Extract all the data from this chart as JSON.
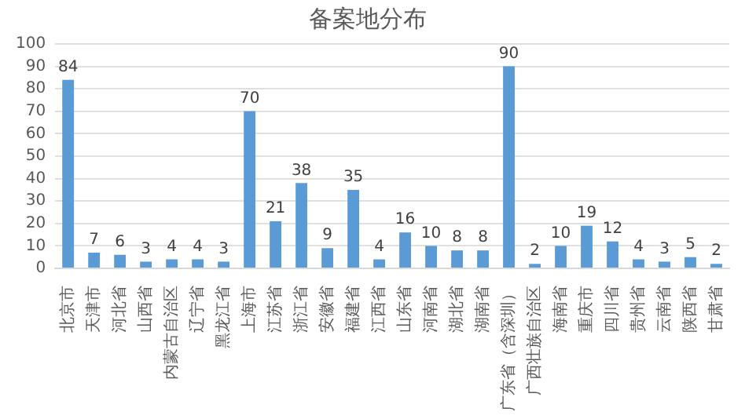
{
  "chart_data": {
    "type": "bar",
    "title": "备案地分布",
    "categories": [
      "北京市",
      "天津市",
      "河北省",
      "山西省",
      "内蒙古自治区",
      "辽宁省",
      "黑龙江省",
      "上海市",
      "江苏省",
      "浙江省",
      "安徽省",
      "福建省",
      "江西省",
      "山东省",
      "河南省",
      "湖北省",
      "湖南省",
      "广东省（含深圳）",
      "广西壮族自治区",
      "海南省",
      "重庆市",
      "四川省",
      "贵州省",
      "云南省",
      "陕西省",
      "甘肃省"
    ],
    "values": [
      84,
      7,
      6,
      3,
      4,
      4,
      3,
      70,
      21,
      38,
      9,
      35,
      4,
      16,
      10,
      8,
      8,
      90,
      2,
      10,
      19,
      12,
      4,
      3,
      5,
      2
    ],
    "color": "#5b9bd5",
    "ylim": [
      0,
      100
    ],
    "yticks": [
      0,
      10,
      20,
      30,
      40,
      50,
      60,
      70,
      80,
      90,
      100
    ],
    "grid": "y",
    "data_labels": true
  }
}
